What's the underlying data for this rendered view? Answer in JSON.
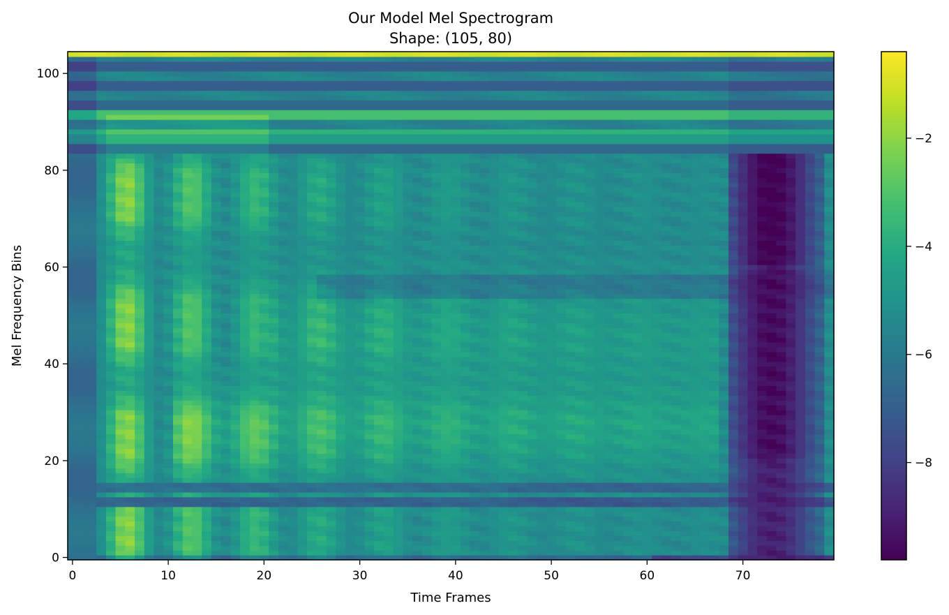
{
  "chart_data": {
    "type": "heatmap",
    "title": "Our Model Mel Spectrogram",
    "subtitle": "Shape: (105, 80)",
    "xlabel": "Time Frames",
    "ylabel": "Mel Frequency Bins",
    "shape": [
      105,
      80
    ],
    "xlim": [
      -0.5,
      79.5
    ],
    "ylim": [
      -0.5,
      104.5
    ],
    "x_ticks": [
      0,
      10,
      20,
      30,
      40,
      50,
      60,
      70
    ],
    "y_ticks": [
      0,
      20,
      40,
      60,
      80,
      100
    ],
    "colormap": "viridis",
    "colorbar": {
      "vmin": -9.8,
      "vmax": -0.4,
      "ticks": [
        -2,
        -4,
        -6,
        -8
      ],
      "tick_labels": [
        "−2",
        "−4",
        "−6",
        "−8"
      ]
    },
    "grid": false,
    "legend": "none",
    "structure": {
      "background_level": -5.4,
      "top_band_bin": 104,
      "top_band_level": -1.0,
      "bright_horizontal_bands": [
        [
          91,
          92,
          -3.2
        ],
        [
          88,
          88,
          -3.8
        ],
        [
          86,
          87,
          -4.6
        ]
      ],
      "dark_horizontal_bands": [
        [
          101,
          102,
          -7.0
        ],
        [
          97,
          98,
          -7.0
        ],
        [
          93,
          94,
          -6.6
        ],
        [
          84,
          85,
          -6.6
        ],
        [
          14,
          15,
          -6.4
        ],
        [
          11,
          12,
          -6.8
        ]
      ],
      "onset_frame": 3,
      "dark_region_frames": [
        69,
        78
      ],
      "dark_region_level": -9.0,
      "harmonic_bins": [
        3,
        8,
        22,
        28,
        45,
        52,
        72,
        78
      ]
    }
  }
}
